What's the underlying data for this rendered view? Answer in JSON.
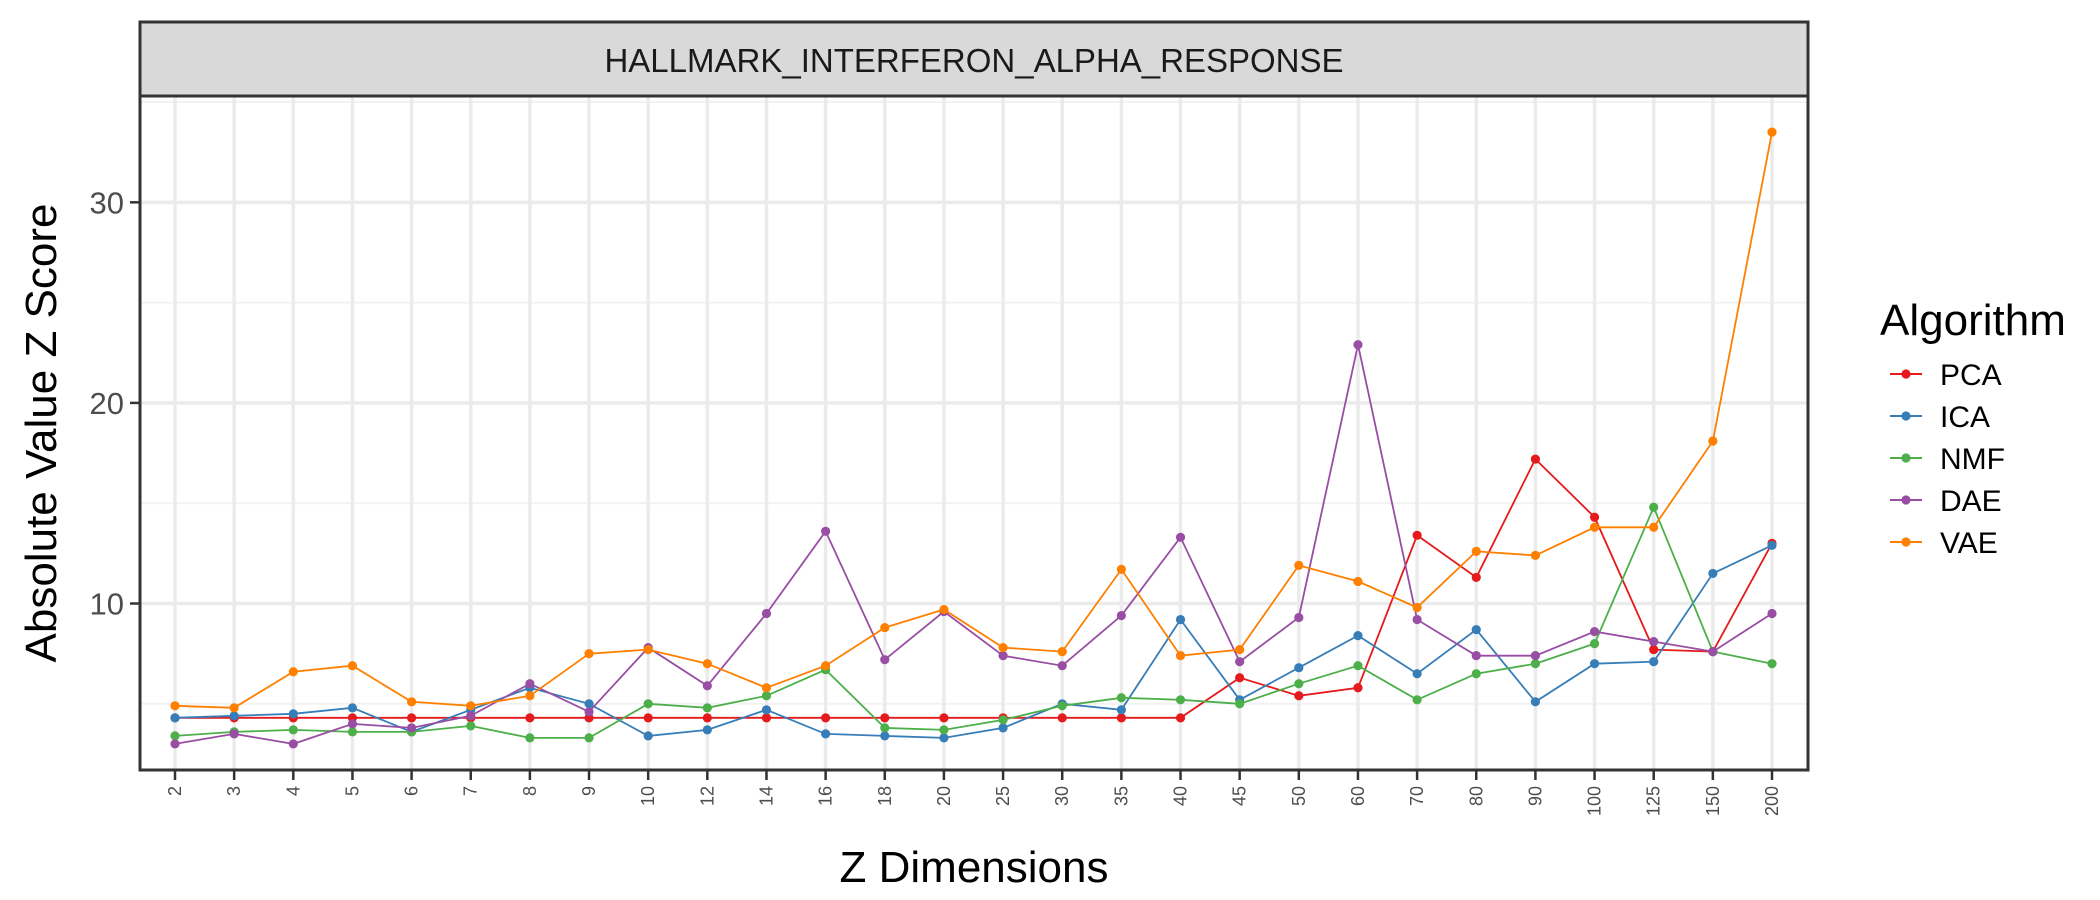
{
  "chart_data": {
    "type": "line",
    "facet_title": "HALLMARK_INTERFERON_ALPHA_RESPONSE",
    "xlabel": "Z Dimensions",
    "ylabel": "Absolute Value Z Score",
    "categories": [
      "2",
      "3",
      "4",
      "5",
      "6",
      "7",
      "8",
      "9",
      "10",
      "12",
      "14",
      "16",
      "18",
      "20",
      "25",
      "30",
      "35",
      "40",
      "45",
      "50",
      "60",
      "70",
      "80",
      "90",
      "100",
      "125",
      "150",
      "200"
    ],
    "ylim": [
      1.7,
      35.3
    ],
    "yticks": [
      10,
      20,
      30
    ],
    "grid": true,
    "legend": {
      "title": "Algorithm",
      "placement": "right"
    },
    "series": [
      {
        "name": "PCA",
        "color": "#E41A1C",
        "values": [
          4.3,
          4.3,
          4.3,
          4.3,
          4.3,
          4.3,
          4.3,
          4.3,
          4.3,
          4.3,
          4.3,
          4.3,
          4.3,
          4.3,
          4.3,
          4.3,
          4.3,
          4.3,
          6.3,
          5.4,
          5.8,
          13.4,
          11.3,
          17.2,
          14.3,
          7.7,
          7.6,
          13.0
        ]
      },
      {
        "name": "ICA",
        "color": "#377EB8",
        "values": [
          4.3,
          4.4,
          4.5,
          4.8,
          3.6,
          4.7,
          5.8,
          5.0,
          3.4,
          3.7,
          4.7,
          3.5,
          3.4,
          3.3,
          3.8,
          5.0,
          4.7,
          9.2,
          5.2,
          6.8,
          8.4,
          6.5,
          8.7,
          5.1,
          7.0,
          7.1,
          11.5,
          12.9
        ]
      },
      {
        "name": "NMF",
        "color": "#4DAF4A",
        "values": [
          3.4,
          3.6,
          3.7,
          3.6,
          3.6,
          3.9,
          3.3,
          3.3,
          5.0,
          4.8,
          5.4,
          6.7,
          3.8,
          3.7,
          4.2,
          4.9,
          5.3,
          5.2,
          5.0,
          6.0,
          6.9,
          5.2,
          6.5,
          7.0,
          8.0,
          14.8,
          7.6,
          7.0
        ]
      },
      {
        "name": "DAE",
        "color": "#984EA3",
        "values": [
          3.0,
          3.5,
          3.0,
          4.0,
          3.8,
          4.4,
          6.0,
          4.6,
          7.8,
          5.9,
          9.5,
          13.6,
          7.2,
          9.6,
          7.4,
          6.9,
          9.4,
          13.3,
          7.1,
          9.3,
          22.9,
          9.2,
          7.4,
          7.4,
          8.6,
          8.1,
          7.6,
          9.5
        ]
      },
      {
        "name": "VAE",
        "color": "#FF7F00",
        "values": [
          4.9,
          4.8,
          6.6,
          6.9,
          5.1,
          4.9,
          5.4,
          7.5,
          7.7,
          7.0,
          5.8,
          6.9,
          8.8,
          9.7,
          7.8,
          7.6,
          11.7,
          7.4,
          7.7,
          11.9,
          11.1,
          9.8,
          12.6,
          12.4,
          13.8,
          13.8,
          18.1,
          33.5
        ]
      }
    ]
  }
}
